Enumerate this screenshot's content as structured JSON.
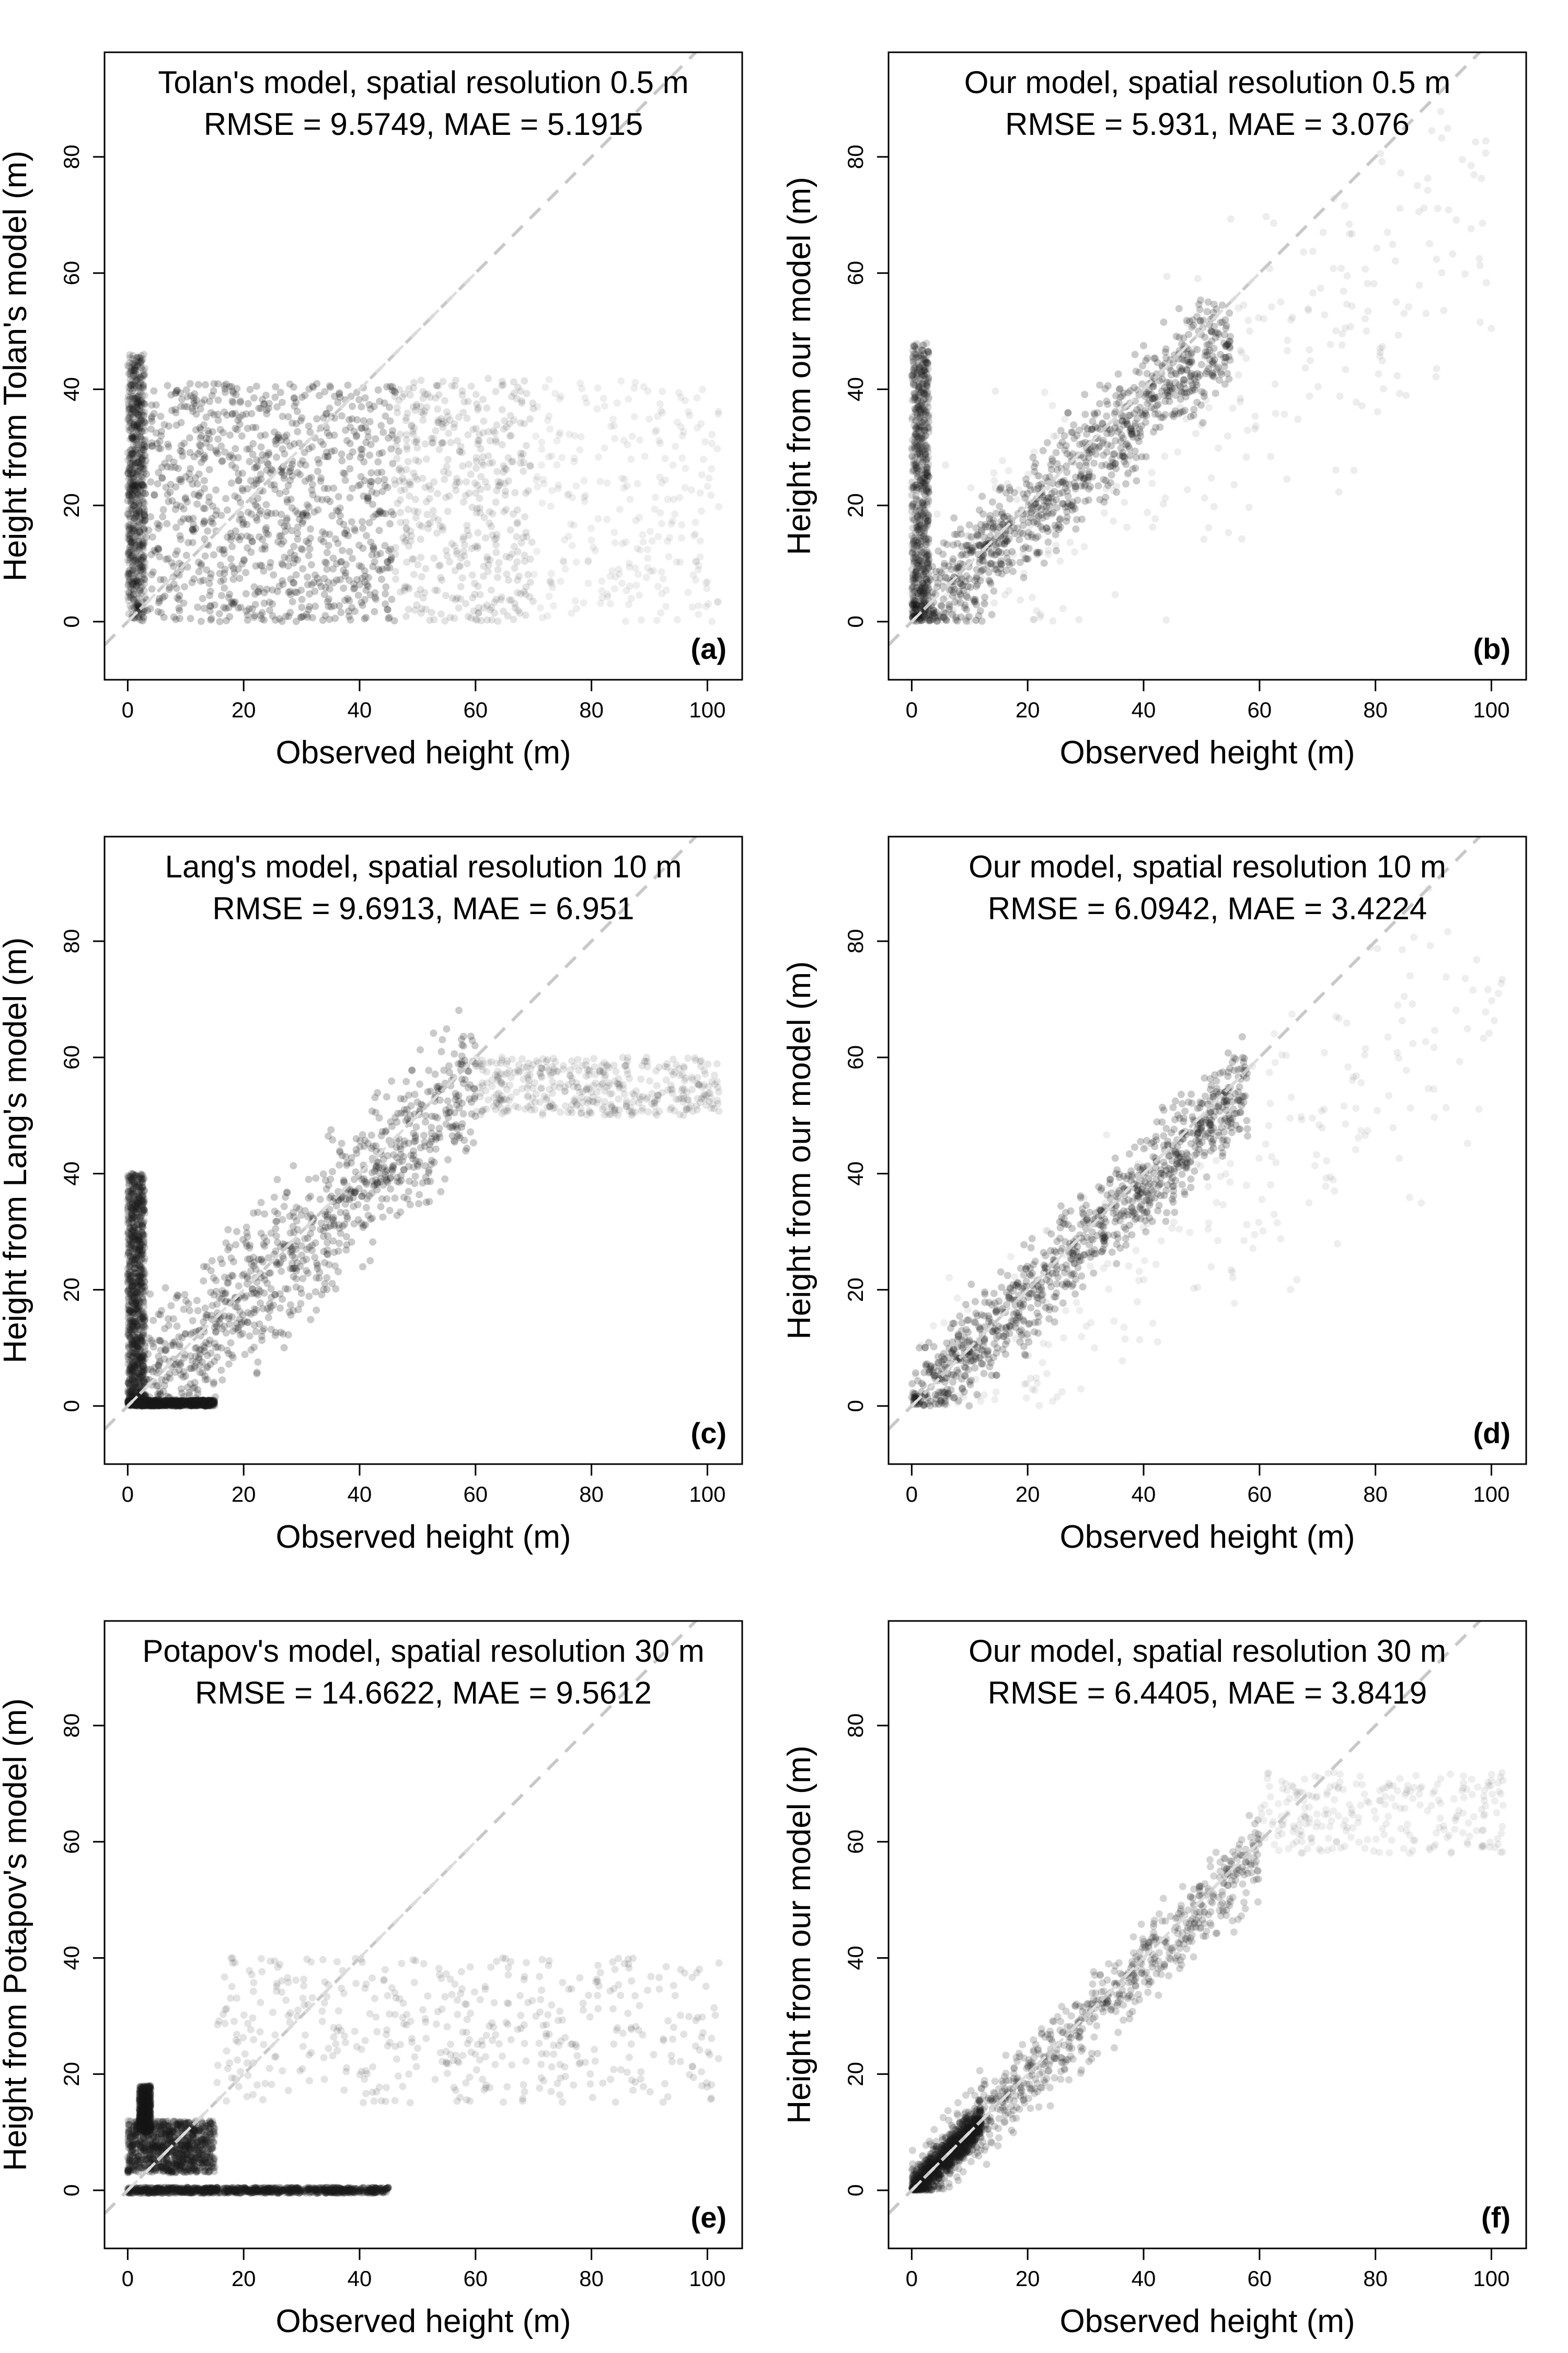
{
  "chart_data": [
    {
      "type": "scatter",
      "panel_label": "(a)",
      "title": "Tolan's model, spatial resolution 0.5 m",
      "subtitle": "RMSE = 9.5749, MAE = 5.1915",
      "xlabel": "Observed height (m)",
      "ylabel": "Height from Tolan's model (m)",
      "xlim": [
        -4,
        106
      ],
      "ylim": [
        -10,
        98
      ],
      "x_ticks": [
        0,
        20,
        40,
        60,
        80,
        100
      ],
      "y_ticks": [
        0,
        20,
        40,
        60,
        80
      ],
      "reference_line": "y = x",
      "density_blobs": [
        {
          "x": [
            0,
            46
          ],
          "y": [
            0,
            41
          ],
          "density": 0.95
        },
        {
          "x": [
            46,
            70
          ],
          "y": [
            0,
            42
          ],
          "density": 0.35
        },
        {
          "x": [
            70,
            102
          ],
          "y": [
            0,
            42
          ],
          "density": 0.12
        },
        {
          "x": [
            0,
            3
          ],
          "y": [
            0,
            46
          ],
          "density": 0.6
        }
      ]
    },
    {
      "type": "scatter",
      "panel_label": "(b)",
      "title": "Our model, spatial resolution 0.5 m",
      "subtitle": "RMSE = 5.931, MAE = 3.076",
      "xlabel": "Observed height (m)",
      "ylabel": "Height from our model (m)",
      "xlim": [
        -4,
        106
      ],
      "ylim": [
        -10,
        98
      ],
      "x_ticks": [
        0,
        20,
        40,
        60,
        80,
        100
      ],
      "y_ticks": [
        0,
        20,
        40,
        60,
        80
      ],
      "reference_line": "y = x",
      "density_blobs": [
        {
          "x": [
            0,
            55
          ],
          "y": [
            0,
            50
          ],
          "density": 0.9,
          "band": 9
        },
        {
          "x": [
            0,
            100
          ],
          "y": [
            0,
            70
          ],
          "density": 0.15,
          "band": 25
        },
        {
          "x": [
            0,
            3
          ],
          "y": [
            0,
            48
          ],
          "density": 0.6
        }
      ]
    },
    {
      "type": "scatter",
      "panel_label": "(c)",
      "title": "Lang's model, spatial resolution 10 m",
      "subtitle": "RMSE = 9.6913, MAE = 6.951",
      "xlabel": "Observed height (m)",
      "ylabel": "Height from Lang's model (m)",
      "xlim": [
        -4,
        106
      ],
      "ylim": [
        -10,
        98
      ],
      "x_ticks": [
        0,
        20,
        40,
        60,
        80,
        100
      ],
      "y_ticks": [
        0,
        20,
        40,
        60,
        80
      ],
      "reference_line": "y = x",
      "density_blobs": [
        {
          "x": [
            0,
            60
          ],
          "y": [
            0,
            56
          ],
          "density": 0.9,
          "band": 12
        },
        {
          "x": [
            60,
            102
          ],
          "y": [
            50,
            60
          ],
          "density": 0.3
        },
        {
          "x": [
            0,
            15
          ],
          "y": [
            0,
            1
          ],
          "density": 0.9
        },
        {
          "x": [
            0,
            3
          ],
          "y": [
            0,
            40
          ],
          "density": 0.8
        }
      ]
    },
    {
      "type": "scatter",
      "panel_label": "(d)",
      "title": "Our model, spatial resolution 10 m",
      "subtitle": "RMSE = 6.0942, MAE = 3.4224",
      "xlabel": "Observed height (m)",
      "ylabel": "Height from our model (m)",
      "xlim": [
        -4,
        106
      ],
      "ylim": [
        -10,
        98
      ],
      "x_ticks": [
        0,
        20,
        40,
        60,
        80,
        100
      ],
      "y_ticks": [
        0,
        20,
        40,
        60,
        80
      ],
      "reference_line": "y = x",
      "density_blobs": [
        {
          "x": [
            0,
            58
          ],
          "y": [
            0,
            55
          ],
          "density": 0.9,
          "band": 8
        },
        {
          "x": [
            0,
            102
          ],
          "y": [
            0,
            70
          ],
          "density": 0.12,
          "band": 22
        }
      ]
    },
    {
      "type": "scatter",
      "panel_label": "(e)",
      "title": "Potapov's model, spatial resolution 30 m",
      "subtitle": "RMSE = 14.6622, MAE = 9.5612",
      "xlabel": "Observed height (m)",
      "ylabel": "Height from Potapov's model (m)",
      "xlim": [
        -4,
        106
      ],
      "ylim": [
        -10,
        98
      ],
      "x_ticks": [
        0,
        20,
        40,
        60,
        80,
        100
      ],
      "y_ticks": [
        0,
        20,
        40,
        60,
        80
      ],
      "reference_line": "y = x",
      "density_blobs": [
        {
          "x": [
            0,
            15
          ],
          "y": [
            3,
            12
          ],
          "density": 0.9
        },
        {
          "x": [
            0,
            45
          ],
          "y": [
            -0.5,
            0.5
          ],
          "density": 0.9
        },
        {
          "x": [
            15,
            102
          ],
          "y": [
            15,
            40
          ],
          "density": 0.35
        },
        {
          "x": [
            2,
            4
          ],
          "y": [
            10,
            18
          ],
          "density": 0.6
        }
      ]
    },
    {
      "type": "scatter",
      "panel_label": "(f)",
      "title": "Our model, spatial resolution 30 m",
      "subtitle": "RMSE = 6.4405, MAE = 3.8419",
      "xlabel": "Observed height (m)",
      "ylabel": "Height from our model (m)",
      "xlim": [
        -4,
        106
      ],
      "ylim": [
        -10,
        98
      ],
      "x_ticks": [
        0,
        20,
        40,
        60,
        80,
        100
      ],
      "y_ticks": [
        0,
        20,
        40,
        60,
        80
      ],
      "reference_line": "y = x",
      "density_blobs": [
        {
          "x": [
            0,
            60
          ],
          "y": [
            0,
            58
          ],
          "density": 0.7,
          "band": 7
        },
        {
          "x": [
            0,
            12
          ],
          "y": [
            0,
            12
          ],
          "density": 0.95,
          "band": 3
        },
        {
          "x": [
            60,
            102
          ],
          "y": [
            58,
            72
          ],
          "density": 0.12
        }
      ]
    }
  ]
}
